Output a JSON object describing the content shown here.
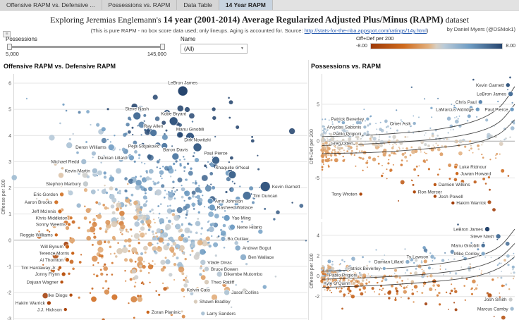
{
  "tabs": [
    {
      "label": "Offensive RAPM vs. Defensive ...",
      "active": false
    },
    {
      "label": "Possessions vs. RAPM",
      "active": false
    },
    {
      "label": "Data Table",
      "active": false
    },
    {
      "label": "14 Year RAPM",
      "active": true
    }
  ],
  "header": {
    "title_prefix": "Exploring Jeremias Englemann's ",
    "title_bold": "14 year (2001-2014) Average Regularized Adjusted Plus/Minus (RAPM)",
    "title_suffix": " dataset",
    "subtitle_prefix": "(This is pure RAPM - no box score data used; only lineups.  Aging is accounted for.  Source: ",
    "subtitle_link": "http://stats-for-the-nba.appspot.com/ratings/14y.html",
    "subtitle_suffix": ")",
    "byline": "by Daniel Myers (@DSMok1)"
  },
  "icons": {
    "dropdown_arrow": "▼",
    "menu_icon": "≡"
  },
  "filters": {
    "possessions": {
      "label": "Possessions",
      "min": "5,000",
      "max": "145,000"
    },
    "name": {
      "label": "Name",
      "value": "(All)"
    },
    "legend": {
      "label": "Off+Def per 200",
      "min": "-8.00",
      "max": "8.00",
      "color_min": "#9e3a07",
      "color_max": "#26456e"
    }
  },
  "chart_data": [
    {
      "type": "scatter",
      "title": "Offensive RAPM vs. Defensive RAPM",
      "ylabel": "Offense per 100",
      "yticks": [
        6,
        5,
        4,
        3,
        2,
        1,
        0,
        -1,
        -2,
        -3
      ],
      "xlim": [
        -3.5,
        4.5
      ],
      "ylim": [
        -3.05,
        6.35
      ],
      "color_range": [
        -5.5,
        6
      ],
      "legend_note": "color = Off+Def per 200, size = possessions",
      "labeled_points": [
        {
          "n": "LeBron James",
          "x": 1.1,
          "y": 5.7,
          "v": 6.8,
          "r": 7,
          "lp": "a"
        },
        {
          "n": "Steve Nash",
          "x": -0.15,
          "y": 4.75,
          "v": 4.6,
          "r": 5.5,
          "lp": "a"
        },
        {
          "n": "Kobe Bryant",
          "x": 0.85,
          "y": 4.55,
          "v": 5.4,
          "r": 6,
          "lp": "a"
        },
        {
          "n": "Ray Allen",
          "x": 0.3,
          "y": 4.1,
          "v": 4.4,
          "r": 5,
          "lp": "a"
        },
        {
          "n": "Manu Ginobili",
          "x": 1.3,
          "y": 3.95,
          "v": 5.3,
          "r": 6,
          "lp": "a"
        },
        {
          "n": "Peja Stojakovic",
          "x": 0.6,
          "y": 3.6,
          "v": 4.2,
          "r": 4.5,
          "lp": "l"
        },
        {
          "n": "Dirk Nowitzki",
          "x": 1.5,
          "y": 3.55,
          "v": 5.1,
          "r": 6,
          "lp": "a"
        },
        {
          "n": "Deron Williams",
          "x": -0.85,
          "y": 3.55,
          "v": 2.7,
          "r": 4.5,
          "lp": "l"
        },
        {
          "n": "Baron Davis",
          "x": 0.9,
          "y": 3.2,
          "v": 4.1,
          "r": 5,
          "lp": "a"
        },
        {
          "n": "Damian Lillard",
          "x": -0.3,
          "y": 3.15,
          "v": 2.8,
          "r": 4,
          "lp": "l"
        },
        {
          "n": "Paul Pierce",
          "x": 2.0,
          "y": 3.05,
          "v": 5.0,
          "r": 5.5,
          "lp": "a"
        },
        {
          "n": "Michael Redd",
          "x": -1.6,
          "y": 3.0,
          "v": 1.4,
          "r": 4,
          "lp": "l"
        },
        {
          "n": "Kevin Martin",
          "x": -1.3,
          "y": 2.65,
          "v": 1.4,
          "r": 4,
          "lp": "l"
        },
        {
          "n": "Shaquille O'Neal",
          "x": 2.45,
          "y": 2.5,
          "v": 4.9,
          "r": 5.5,
          "lp": "a"
        },
        {
          "n": "Stephon Marbury",
          "x": -1.55,
          "y": 2.15,
          "v": 0.6,
          "r": 4,
          "lp": "l"
        },
        {
          "n": "Kevin Garnett",
          "x": 3.35,
          "y": 2.05,
          "v": 5.4,
          "r": 7,
          "lp": "r"
        },
        {
          "n": "Tim Duncan",
          "x": 2.85,
          "y": 1.7,
          "v": 4.5,
          "r": 6,
          "lp": "r"
        },
        {
          "n": "Eric Gordon",
          "x": -2.2,
          "y": 1.75,
          "v": -2.0,
          "r": 3,
          "lp": "l"
        },
        {
          "n": "Amir Johnson",
          "x": 1.85,
          "y": 1.5,
          "v": 3.4,
          "r": 4,
          "lp": "r"
        },
        {
          "n": "Aaron Brooks",
          "x": -2.35,
          "y": 1.45,
          "v": -2.2,
          "r": 3,
          "lp": "l"
        },
        {
          "n": "Rasheed Wallace",
          "x": 1.9,
          "y": 1.25,
          "v": 3.2,
          "r": 4.5,
          "lp": "r"
        },
        {
          "n": "Jeff McInnis",
          "x": -2.25,
          "y": 1.1,
          "v": -2.5,
          "r": 3,
          "lp": "l"
        },
        {
          "n": "Khris Middleton",
          "x": -1.95,
          "y": 0.85,
          "v": -2.0,
          "r": 2.5,
          "lp": "l"
        },
        {
          "n": "Sonny Weems",
          "x": -2.0,
          "y": 0.6,
          "v": -2.2,
          "r": 2.5,
          "lp": "l"
        },
        {
          "n": "Yao Ming",
          "x": 2.3,
          "y": 0.85,
          "v": 3.2,
          "r": 4.5,
          "lp": "r"
        },
        {
          "n": "Nene Hilario",
          "x": 2.45,
          "y": 0.5,
          "v": 3.0,
          "r": 4,
          "lp": "r"
        },
        {
          "n": "Reggie Williams",
          "x": -2.35,
          "y": 0.2,
          "v": -2.8,
          "r": 2.5,
          "lp": "l"
        },
        {
          "n": "Bo Outlaw",
          "x": 2.2,
          "y": 0.05,
          "v": 2.3,
          "r": 3.5,
          "lp": "r"
        },
        {
          "n": "Will Bynum",
          "x": -2.05,
          "y": -0.25,
          "v": -3.0,
          "r": 3,
          "lp": "l"
        },
        {
          "n": "Terence Morris",
          "x": -1.9,
          "y": -0.5,
          "v": -3.0,
          "r": 2.5,
          "lp": "l"
        },
        {
          "n": "Andrew Bogut",
          "x": 2.6,
          "y": -0.3,
          "v": 2.3,
          "r": 4,
          "lp": "r"
        },
        {
          "n": "Ben Wallace",
          "x": 2.75,
          "y": -0.65,
          "v": 2.1,
          "r": 4.5,
          "lp": "r"
        },
        {
          "n": "Al Thornton",
          "x": -2.05,
          "y": -0.75,
          "v": -3.3,
          "r": 3,
          "lp": "l"
        },
        {
          "n": "Vlade Divac",
          "x": 1.65,
          "y": -0.85,
          "v": 0.8,
          "r": 4,
          "lp": "r"
        },
        {
          "n": "Bruce Bowen",
          "x": 1.75,
          "y": -1.1,
          "v": 0.7,
          "r": 3.5,
          "lp": "r"
        },
        {
          "n": "Tim Hardaway Jr.",
          "x": -2.25,
          "y": -1.05,
          "v": -3.6,
          "r": 2.5,
          "lp": "l"
        },
        {
          "n": "Jonny Flynn",
          "x": -2.15,
          "y": -1.3,
          "v": -3.8,
          "r": 3,
          "lp": "l"
        },
        {
          "n": "Dikembe Mutombo",
          "x": 2.1,
          "y": -1.3,
          "v": 0.8,
          "r": 4,
          "lp": "r"
        },
        {
          "n": "Dajuan Wagner",
          "x": -2.2,
          "y": -1.6,
          "v": -4.0,
          "r": 2.5,
          "lp": "l"
        },
        {
          "n": "Theo Ratliff",
          "x": 1.75,
          "y": -1.6,
          "v": 0.2,
          "r": 3.5,
          "lp": "r"
        },
        {
          "n": "Kelvin Cato",
          "x": 1.1,
          "y": -1.9,
          "v": -0.8,
          "r": 3,
          "lp": "r"
        },
        {
          "n": "Jason Collins",
          "x": 2.3,
          "y": -2.0,
          "v": 1.0,
          "r": 4,
          "lp": "r"
        },
        {
          "n": "Ike Diogu",
          "x": -1.95,
          "y": -2.1,
          "v": -4.2,
          "r": 2.5,
          "lp": "l"
        },
        {
          "n": "Hakim Warrick",
          "x": -2.55,
          "y": -2.4,
          "v": -5.0,
          "r": 3,
          "lp": "l"
        },
        {
          "n": "Shawn Bradley",
          "x": 1.45,
          "y": -2.35,
          "v": 0.2,
          "r": 3,
          "lp": "r"
        },
        {
          "n": "J.J. Hickson",
          "x": -2.1,
          "y": -2.65,
          "v": -4.8,
          "r": 2.5,
          "lp": "l"
        },
        {
          "n": "Zoran Planinic",
          "x": 0.15,
          "y": -2.75,
          "v": -3.0,
          "r": 2.5,
          "lp": "r"
        },
        {
          "n": "Larry Sanders",
          "x": 1.65,
          "y": -2.8,
          "v": 1.2,
          "r": 3,
          "lp": "r"
        }
      ]
    },
    {
      "type": "scatter",
      "title": "Possessions vs. RAPM",
      "ylabel": "Off+Def per 200",
      "yticks": [
        5,
        0,
        -5
      ],
      "xlim": [
        5000,
        145000
      ],
      "ylim": [
        -10.6,
        9.1
      ],
      "color_range": [
        -8.5,
        8.5
      ],
      "trend_curves": [
        [
          [
            0,
            0.6
          ],
          [
            0.3,
            0.9
          ],
          [
            0.6,
            1.6
          ],
          [
            0.8,
            2.8
          ],
          [
            0.92,
            4.6
          ],
          [
            1,
            7.4
          ]
        ],
        [
          [
            0,
            -0.6
          ],
          [
            0.3,
            -0.3
          ],
          [
            0.6,
            0.3
          ],
          [
            0.8,
            1.2
          ],
          [
            0.92,
            2.6
          ],
          [
            1,
            5.0
          ]
        ],
        [
          [
            0,
            -1.7
          ],
          [
            0.3,
            -1.5
          ],
          [
            0.6,
            -0.9
          ],
          [
            0.8,
            -0.2
          ],
          [
            0.92,
            1.0
          ],
          [
            1,
            2.9
          ]
        ]
      ],
      "labeled_points": [
        {
          "n": "Kevin Garnett",
          "x": 140000,
          "y": 7.6,
          "v": 7.6,
          "r": 3,
          "lp": "l"
        },
        {
          "n": "LeBron James",
          "x": 142000,
          "y": 6.4,
          "v": 6.4,
          "r": 3.5,
          "lp": "l"
        },
        {
          "n": "Chris Paul",
          "x": 120000,
          "y": 5.3,
          "v": 5.3,
          "r": 3,
          "lp": "l"
        },
        {
          "n": "LaMarcus Aldridge",
          "x": 118000,
          "y": 4.3,
          "v": 4.3,
          "r": 3,
          "lp": "l"
        },
        {
          "n": "Paul Pierce",
          "x": 143000,
          "y": 4.3,
          "v": 4.3,
          "r": 3,
          "lp": "l"
        },
        {
          "n": "Patrick Beverley",
          "x": 38000,
          "y": 3.0,
          "v": 3.0,
          "r": 2.5,
          "lp": "l"
        },
        {
          "n": "Omer Asik",
          "x": 72000,
          "y": 2.4,
          "v": 2.4,
          "r": 2.5,
          "lp": "l"
        },
        {
          "n": "Arvydas Sabonis",
          "x": 36000,
          "y": 1.9,
          "v": 1.9,
          "r": 2.5,
          "lp": "l"
        },
        {
          "n": "Pablo Prigioni",
          "x": 36000,
          "y": 1.0,
          "v": 1.0,
          "r": 2.5,
          "lp": "l"
        },
        {
          "n": "Greg Oden",
          "x": 30000,
          "y": -0.3,
          "v": -0.3,
          "r": 2.5,
          "lp": "l"
        },
        {
          "n": "Luke Ridnour",
          "x": 102000,
          "y": -3.5,
          "v": -3.5,
          "r": 2.5,
          "lp": "r"
        },
        {
          "n": "Juwan Howard",
          "x": 103000,
          "y": -4.4,
          "v": -4.4,
          "r": 2.5,
          "lp": "r"
        },
        {
          "n": "Damien Wilkins",
          "x": 87000,
          "y": -5.9,
          "v": -5.9,
          "r": 2.5,
          "lp": "r"
        },
        {
          "n": "Ron Mercer",
          "x": 72000,
          "y": -6.9,
          "v": -6.9,
          "r": 2.5,
          "lp": "r"
        },
        {
          "n": "Tony Wroten",
          "x": 33000,
          "y": -7.2,
          "v": -7.2,
          "r": 2.5,
          "lp": "l"
        },
        {
          "n": "Josh Powell",
          "x": 87000,
          "y": -7.5,
          "v": -7.5,
          "r": 2.5,
          "lp": "r"
        },
        {
          "n": "Hakim Warrick",
          "x": 100000,
          "y": -8.4,
          "v": -8.4,
          "r": 2.5,
          "lp": "r"
        }
      ]
    },
    {
      "type": "scatter",
      "ylabel": "Offense per 100",
      "yticks": [
        4,
        2,
        0,
        -2
      ],
      "xlim": [
        5000,
        145000
      ],
      "ylim": [
        -4.3,
        5.3
      ],
      "color_range": [
        -5,
        6.5
      ],
      "trend_curves": [
        [
          [
            0,
            0.5
          ],
          [
            0.3,
            0.7
          ],
          [
            0.6,
            1.2
          ],
          [
            0.8,
            1.9
          ],
          [
            0.92,
            2.9
          ],
          [
            1,
            4.6
          ]
        ],
        [
          [
            0,
            -0.3
          ],
          [
            0.3,
            -0.1
          ],
          [
            0.6,
            0.3
          ],
          [
            0.8,
            0.9
          ],
          [
            0.92,
            1.8
          ],
          [
            1,
            3.2
          ]
        ],
        [
          [
            0,
            -1.1
          ],
          [
            0.3,
            -0.9
          ],
          [
            0.6,
            -0.5
          ],
          [
            0.8,
            0.0
          ],
          [
            0.92,
            0.8
          ],
          [
            1,
            1.9
          ]
        ]
      ],
      "labeled_points": [
        {
          "n": "LeBron James",
          "x": 125000,
          "y": 4.6,
          "v": 7.0,
          "r": 3.5,
          "lp": "l"
        },
        {
          "n": "Steve Nash",
          "x": 133000,
          "y": 3.9,
          "v": 5.0,
          "r": 3.5,
          "lp": "l"
        },
        {
          "n": "Manu Ginobili",
          "x": 122000,
          "y": 3.0,
          "v": 5.0,
          "r": 3,
          "lp": "l"
        },
        {
          "n": "Mike Conley",
          "x": 122000,
          "y": 2.2,
          "v": 3.0,
          "r": 3,
          "lp": "l"
        },
        {
          "n": "Ty Lawson",
          "x": 85000,
          "y": 1.9,
          "v": 2.5,
          "r": 3,
          "lp": "l"
        },
        {
          "n": "Damian Lillard",
          "x": 67000,
          "y": 1.4,
          "v": 2.8,
          "r": 3,
          "lp": "l"
        },
        {
          "n": "Patrick Beverley",
          "x": 50000,
          "y": 0.75,
          "v": 3.0,
          "r": 2.5,
          "lp": "l"
        },
        {
          "n": "Pablo Prigioni",
          "x": 33000,
          "y": 0.1,
          "v": 1.0,
          "r": 2.5,
          "lp": "l"
        },
        {
          "n": "Kyle O'Quinn",
          "x": 28000,
          "y": -0.7,
          "v": 0.5,
          "r": 2.5,
          "lp": "l"
        },
        {
          "n": "Josh Smith",
          "x": 142000,
          "y": -2.3,
          "v": 1.0,
          "r": 3,
          "lp": "l"
        },
        {
          "n": "Marcus Camby",
          "x": 143000,
          "y": -3.2,
          "v": 2.0,
          "r": 3,
          "lp": "l"
        }
      ]
    }
  ]
}
